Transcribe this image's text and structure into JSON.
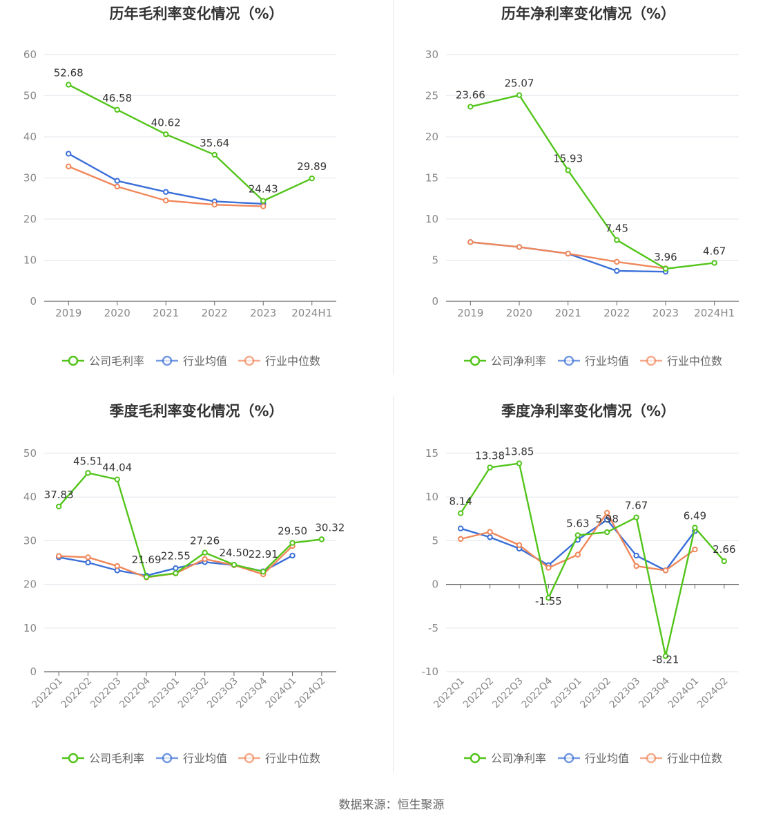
{
  "source": "数据来源：恒生聚源",
  "colors": {
    "company": "#52c41a",
    "avg": "#3a6fd8",
    "median": "#f0875a"
  },
  "legend_icons": [
    "circle-line-icon",
    "circle-line-icon",
    "circle-line-icon"
  ],
  "chart_data": [
    {
      "type": "line",
      "title": "历年毛利率变化情况（%）",
      "categories": [
        "2019",
        "2020",
        "2021",
        "2022",
        "2023",
        "2024H1"
      ],
      "ylim": [
        0,
        60
      ],
      "yticks": [
        0,
        10,
        20,
        30,
        40,
        50,
        60
      ],
      "ytick_labels": [
        "0",
        "10",
        "20",
        "30",
        "40",
        "50",
        "60"
      ],
      "xrotate": false,
      "grid": true,
      "legend_position": "bottom",
      "series": [
        {
          "name": "公司毛利率",
          "color": "#52c41a",
          "values": [
            52.68,
            46.58,
            40.62,
            35.64,
            24.43,
            29.89
          ],
          "labels": [
            "52.68",
            "46.58",
            "40.62",
            "35.64",
            "24.43",
            "29.89"
          ]
        },
        {
          "name": "行业均值",
          "color": "#3a6fd8",
          "values": [
            35.9,
            29.3,
            26.6,
            24.3,
            23.7,
            null
          ]
        },
        {
          "name": "行业中位数",
          "color": "#f0875a",
          "values": [
            32.8,
            27.9,
            24.5,
            23.5,
            23.1,
            null
          ]
        }
      ]
    },
    {
      "type": "line",
      "title": "历年净利率变化情况（%）",
      "categories": [
        "2019",
        "2020",
        "2021",
        "2022",
        "2023",
        "2024H1"
      ],
      "ylim": [
        0,
        30
      ],
      "yticks": [
        0,
        5,
        10,
        15,
        20,
        25,
        30
      ],
      "ytick_labels": [
        "0",
        "5",
        "10",
        "15",
        "20",
        "25",
        "30"
      ],
      "xrotate": false,
      "grid": true,
      "legend_position": "bottom",
      "series": [
        {
          "name": "公司净利率",
          "color": "#52c41a",
          "values": [
            23.66,
            25.07,
            15.93,
            7.45,
            3.96,
            4.67
          ],
          "labels": [
            "23.66",
            "25.07",
            "15.93",
            "7.45",
            "3.96",
            "4.67"
          ]
        },
        {
          "name": "行业均值",
          "color": "#3a6fd8",
          "values": [
            7.2,
            6.6,
            5.8,
            3.7,
            3.6,
            null
          ]
        },
        {
          "name": "行业中位数",
          "color": "#f0875a",
          "values": [
            7.2,
            6.6,
            5.8,
            4.8,
            4.0,
            null
          ]
        }
      ]
    },
    {
      "type": "line",
      "title": "季度毛利率变化情况（%）",
      "categories": [
        "2022Q1",
        "2022Q2",
        "2022Q3",
        "2022Q4",
        "2023Q1",
        "2023Q2",
        "2023Q3",
        "2023Q4",
        "2024Q1",
        "2024Q2"
      ],
      "ylim": [
        0,
        50
      ],
      "yticks": [
        0,
        10,
        20,
        30,
        40,
        50
      ],
      "ytick_labels": [
        "0",
        "10",
        "20",
        "30",
        "40",
        "50"
      ],
      "xrotate": true,
      "grid": true,
      "legend_position": "bottom",
      "series": [
        {
          "name": "公司毛利率",
          "color": "#52c41a",
          "values": [
            37.83,
            45.51,
            44.04,
            21.69,
            22.55,
            27.26,
            24.5,
            22.91,
            29.5,
            30.32
          ],
          "labels": [
            "37.83",
            "45.51",
            "44.04",
            "21.69",
            "22.55",
            "27.26",
            "24.50",
            "22.91",
            "29.50",
            "30.32"
          ]
        },
        {
          "name": "行业均值",
          "color": "#3a6fd8",
          "values": [
            26.2,
            25.0,
            23.2,
            22.0,
            23.7,
            25.1,
            24.4,
            23.0,
            26.6,
            null
          ]
        },
        {
          "name": "行业中位数",
          "color": "#f0875a",
          "values": [
            26.5,
            26.2,
            24.2,
            21.6,
            22.5,
            25.8,
            24.4,
            22.3,
            28.8,
            null
          ]
        }
      ]
    },
    {
      "type": "line",
      "title": "季度净利率变化情况（%）",
      "categories": [
        "2022Q1",
        "2022Q2",
        "2022Q3",
        "2022Q4",
        "2023Q1",
        "2023Q2",
        "2023Q3",
        "2023Q4",
        "2024Q1",
        "2024Q2"
      ],
      "ylim": [
        -10,
        15
      ],
      "yticks": [
        -10,
        -5,
        0,
        5,
        10,
        15
      ],
      "ytick_labels": [
        "-10",
        "-5",
        "0",
        "5",
        "10",
        "15"
      ],
      "xrotate": true,
      "grid": true,
      "legend_position": "bottom",
      "series": [
        {
          "name": "公司净利率",
          "color": "#52c41a",
          "values": [
            8.14,
            13.38,
            13.85,
            -1.55,
            5.63,
            5.98,
            7.67,
            -8.21,
            6.49,
            2.66
          ],
          "labels": [
            "8.14",
            "13.38",
            "13.85",
            "-1.55",
            "5.63",
            "5.98",
            "7.67",
            "-8.21",
            "6.49",
            "2.66"
          ]
        },
        {
          "name": "行业均值",
          "color": "#3a6fd8",
          "values": [
            6.4,
            5.4,
            4.1,
            2.2,
            5.1,
            7.4,
            3.3,
            1.6,
            6.1,
            null
          ]
        },
        {
          "name": "行业中位数",
          "color": "#f0875a",
          "values": [
            5.2,
            6.0,
            4.5,
            1.9,
            3.4,
            8.2,
            2.1,
            1.6,
            4.0,
            null
          ]
        }
      ]
    }
  ]
}
